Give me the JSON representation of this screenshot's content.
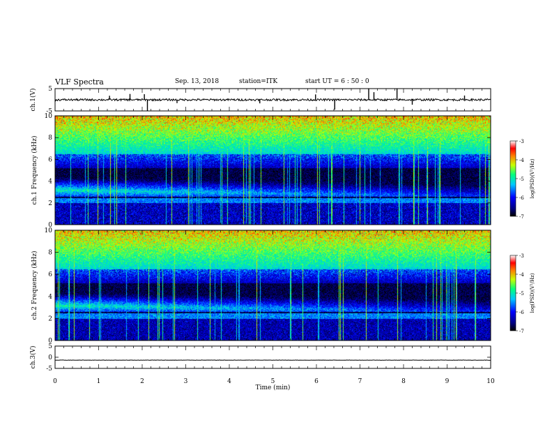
{
  "header": {
    "title": "VLF Spectra",
    "date": "Sep. 13, 2018",
    "station": "station=ITK",
    "start": "start  UT  =   6  : 50 : 0"
  },
  "chart_data": [
    {
      "type": "line",
      "panel": "ch1-waveform",
      "ylabel": "ch.1(V)",
      "ylim": [
        -5,
        5
      ],
      "yticks": [
        "5",
        "-5"
      ],
      "xlim": [
        0,
        10
      ],
      "baseline": 0,
      "spikes": [
        {
          "x": 1.25,
          "y": 1.8
        },
        {
          "x": 1.72,
          "y": 2.6
        },
        {
          "x": 2.12,
          "y": -5
        },
        {
          "x": 2.05,
          "y": 2.5
        },
        {
          "x": 2.8,
          "y": -1.5
        },
        {
          "x": 4.7,
          "y": -1.6
        },
        {
          "x": 5.98,
          "y": 2.4
        },
        {
          "x": 6.42,
          "y": -4.4
        },
        {
          "x": 7.2,
          "y": 5
        },
        {
          "x": 7.32,
          "y": 3.4
        },
        {
          "x": 7.85,
          "y": 5
        },
        {
          "x": 8.2,
          "y": -2.2
        },
        {
          "x": 9.4,
          "y": 1.9
        }
      ]
    },
    {
      "type": "heatmap",
      "panel": "ch1-spectrogram",
      "ylabel": "ch.1  Frequency  (kHz)",
      "ylim": [
        0,
        10
      ],
      "yticks": [
        "0",
        "2",
        "4",
        "6",
        "8",
        "10"
      ],
      "xlim": [
        0,
        10
      ],
      "colorbar": {
        "label": "log(PSD)(V²/Hz)",
        "range": [
          -7,
          -3
        ],
        "ticks": [
          "-3",
          "-4",
          "-5",
          "-6",
          "-7"
        ]
      }
    },
    {
      "type": "heatmap",
      "panel": "ch2-spectrogram",
      "ylabel": "ch.2  Frequency  (kHz)",
      "ylim": [
        0,
        10
      ],
      "yticks": [
        "0",
        "2",
        "4",
        "6",
        "8",
        "10"
      ],
      "xlim": [
        0,
        10
      ],
      "colorbar": {
        "label": "log(PSD)(V²/Hz)",
        "range": [
          -7,
          -3
        ],
        "ticks": [
          "-3",
          "-4",
          "-5",
          "-6",
          "-7"
        ]
      }
    },
    {
      "type": "line",
      "panel": "ch3-waveform",
      "ylabel": "ch.3(V)",
      "ylim": [
        -5,
        5
      ],
      "yticks": [
        "5",
        "0",
        "-5"
      ],
      "xlim": [
        0,
        10
      ],
      "baseline": -1.3
    }
  ],
  "xaxis": {
    "label": "Time  (min)",
    "ticks": [
      "0",
      "1",
      "2",
      "3",
      "4",
      "5",
      "6",
      "7",
      "8",
      "9",
      "10"
    ]
  }
}
